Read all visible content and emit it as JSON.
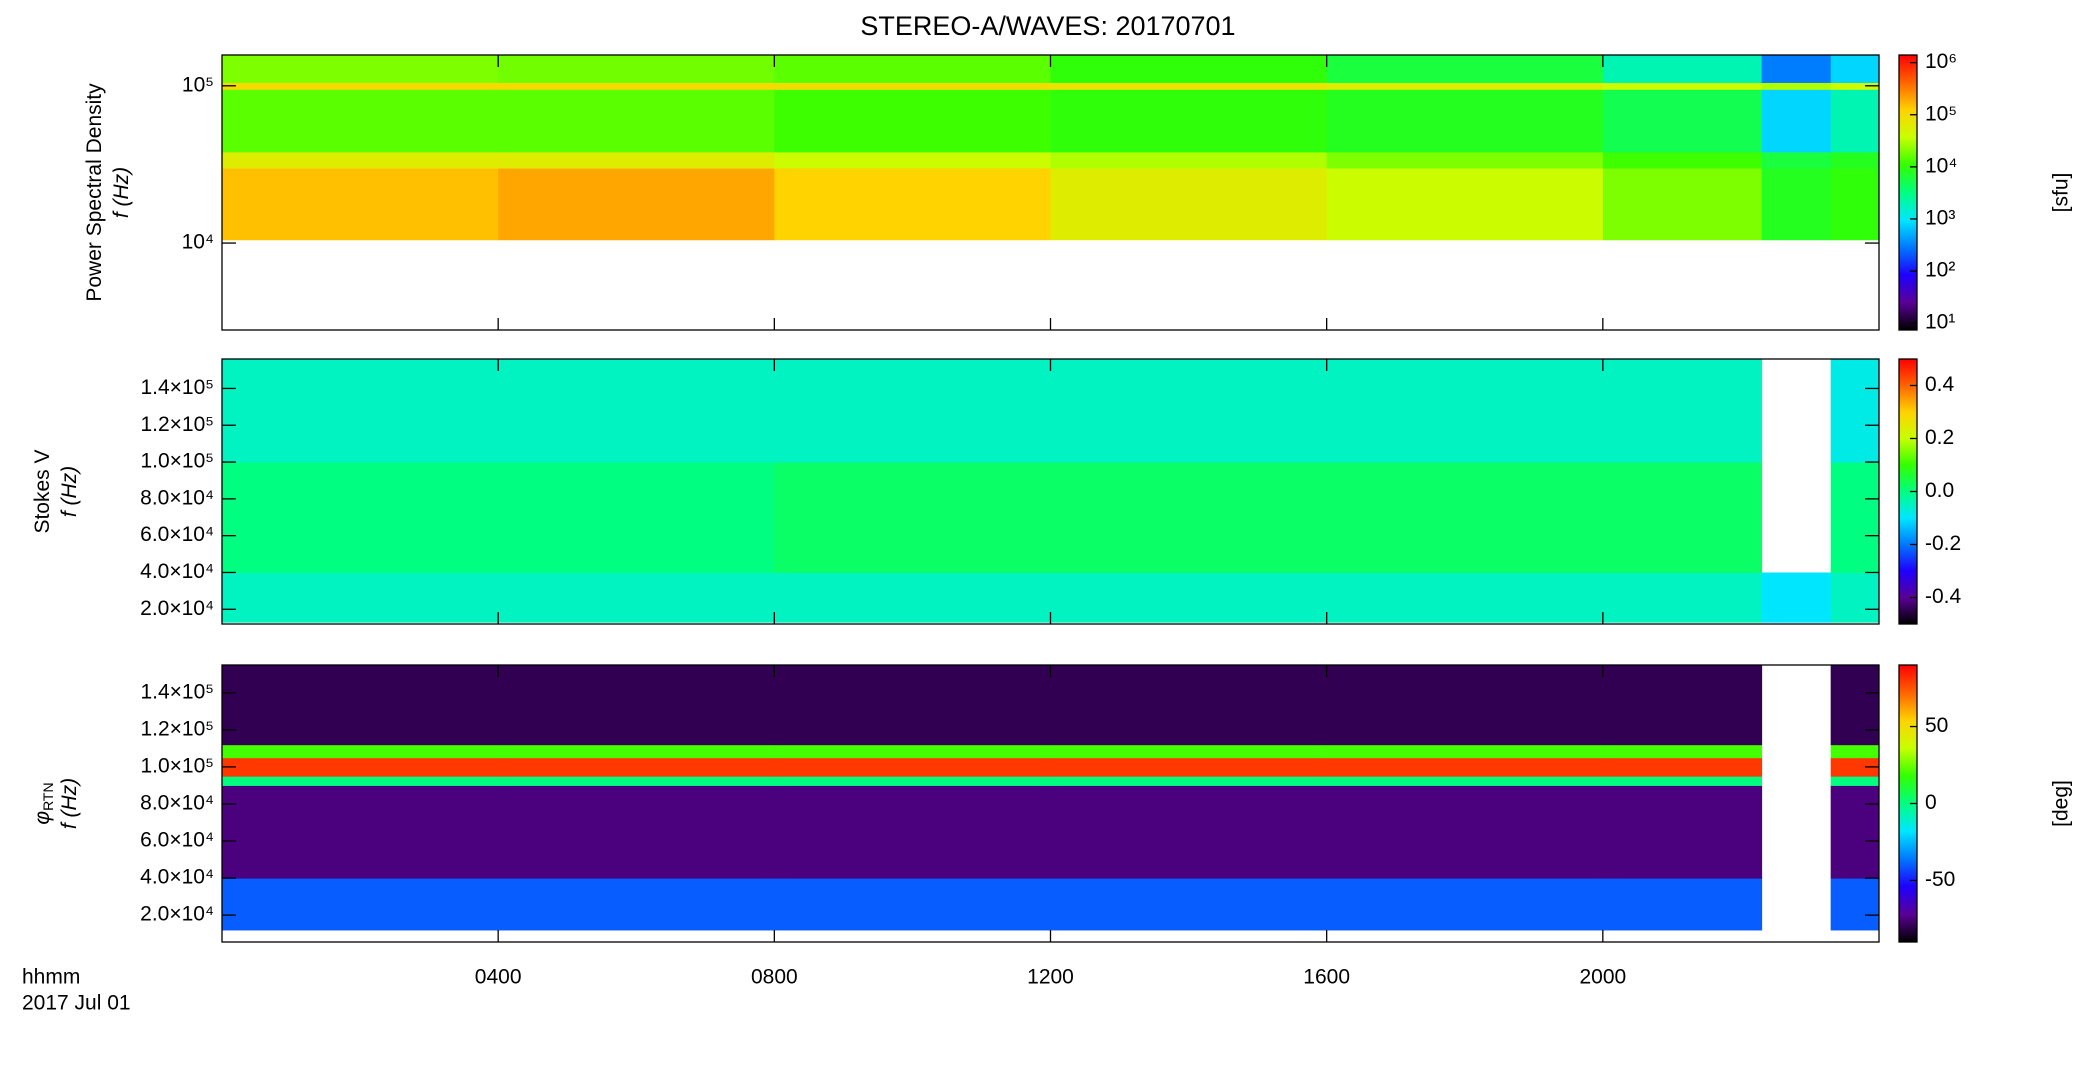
{
  "chart_data": {
    "type": "heatmap",
    "title": "STEREO-A/WAVES: 20170701",
    "xlim": [
      0,
      24
    ],
    "xticks": [
      {
        "value": 4,
        "label": "0400"
      },
      {
        "value": 8,
        "label": "0800"
      },
      {
        "value": 12,
        "label": "1200"
      },
      {
        "value": 16,
        "label": "1600"
      },
      {
        "value": 20,
        "label": "2000"
      }
    ],
    "xlabel": [
      "hhmm",
      "2017 Jul 01"
    ],
    "x": [
      0,
      4,
      8,
      12,
      16,
      20,
      22.3,
      23.3,
      24
    ],
    "colormap": [
      "#000000",
      "#5a0096",
      "#1e00ff",
      "#0078ff",
      "#00e6ff",
      "#00ff80",
      "#32ff00",
      "#c8ff00",
      "#ffd200",
      "#ff6400",
      "#ff0000"
    ],
    "panels": [
      {
        "ylabel": [
          "Power Spectral Density",
          "f (Hz)"
        ],
        "ylog": true,
        "ylim": [
          2800,
          157000
        ],
        "yticks": [
          {
            "value": 10000,
            "label": "10⁴"
          },
          {
            "value": 100000,
            "label": "10⁵"
          }
        ],
        "y": [
          10500,
          30000,
          38000,
          95000,
          105000,
          157000
        ],
        "z": [
          [
            150000,
            200000,
            120000,
            60000,
            40000,
            20000,
            8000,
            10000
          ],
          [
            60000,
            60000,
            40000,
            30000,
            20000,
            12000,
            6000,
            8000
          ],
          [
            15000,
            15000,
            12000,
            10000,
            8000,
            5000,
            800,
            2000
          ],
          [
            100000,
            100000,
            90000,
            80000,
            60000,
            40000,
            30000,
            40000
          ],
          [
            20000,
            18000,
            15000,
            10000,
            6000,
            2000,
            300,
            800
          ]
        ],
        "clog": true,
        "clim": [
          7.4,
          1400000
        ],
        "cticks": [
          {
            "value": 10,
            "label": "10¹"
          },
          {
            "value": 100,
            "label": "10²"
          },
          {
            "value": 1000,
            "label": "10³"
          },
          {
            "value": 10000,
            "label": "10⁴"
          },
          {
            "value": 100000,
            "label": "10⁵"
          },
          {
            "value": 1000000,
            "label": "10⁶"
          }
        ],
        "clabel": "[sfu]"
      },
      {
        "ylabel": [
          "Stokes V",
          "f (Hz)"
        ],
        "ylog": false,
        "ylim": [
          12000,
          156000
        ],
        "yticks": [
          {
            "value": 20000,
            "label": "2.0×10⁴"
          },
          {
            "value": 40000,
            "label": "4.0×10⁴"
          },
          {
            "value": 60000,
            "label": "6.0×10⁴"
          },
          {
            "value": 80000,
            "label": "8.0×10⁴"
          },
          {
            "value": 100000,
            "label": "1.0×10⁵"
          },
          {
            "value": 120000,
            "label": "1.2×10⁵"
          },
          {
            "value": 140000,
            "label": "1.4×10⁵"
          }
        ],
        "y": [
          13000,
          40000,
          100000,
          156000
        ],
        "z": [
          [
            -0.05,
            -0.05,
            -0.05,
            -0.05,
            -0.05,
            -0.05,
            -0.1,
            -0.05
          ],
          [
            0,
            0,
            0.02,
            0.02,
            0.02,
            0.02,
            null,
            0
          ],
          [
            -0.05,
            -0.05,
            -0.05,
            -0.05,
            -0.05,
            -0.05,
            null,
            -0.08
          ]
        ],
        "clog": false,
        "clim": [
          -0.5,
          0.5
        ],
        "cticks": [
          -0.4,
          -0.2,
          {
            "value": 0,
            "label": "0.0"
          },
          0.2,
          0.4
        ]
      },
      {
        "ylabel": [
          "φ",
          "f (Hz)"
        ],
        "ylabel_sub": "RTN",
        "ylog": false,
        "ylim": [
          5500,
          155000
        ],
        "yticks": [
          {
            "value": 20000,
            "label": "2.0×10⁴"
          },
          {
            "value": 40000,
            "label": "4.0×10⁴"
          },
          {
            "value": 60000,
            "label": "6.0×10⁴"
          },
          {
            "value": 80000,
            "label": "8.0×10⁴"
          },
          {
            "value": 100000,
            "label": "1.0×10⁵"
          },
          {
            "value": 120000,
            "label": "1.2×10⁵"
          },
          {
            "value": 140000,
            "label": "1.4×10⁵"
          }
        ],
        "y": [
          12000,
          40000,
          90000,
          95000,
          105000,
          112000,
          155000
        ],
        "z": [
          [
            -40,
            -40,
            -40,
            -40,
            -40,
            -40,
            null,
            -40
          ],
          [
            -75,
            -75,
            -75,
            -75,
            -75,
            -75,
            null,
            -75
          ],
          [
            0,
            0,
            0,
            0,
            0,
            0,
            null,
            0
          ],
          [
            80,
            80,
            80,
            80,
            80,
            80,
            null,
            80
          ],
          [
            20,
            20,
            20,
            20,
            20,
            20,
            null,
            20
          ],
          [
            -80,
            -80,
            -80,
            -80,
            -80,
            -80,
            null,
            -80
          ]
        ],
        "clog": false,
        "clim": [
          -90,
          90
        ],
        "cticks": [
          -50,
          0,
          50
        ],
        "clabel": "[deg]"
      }
    ]
  }
}
